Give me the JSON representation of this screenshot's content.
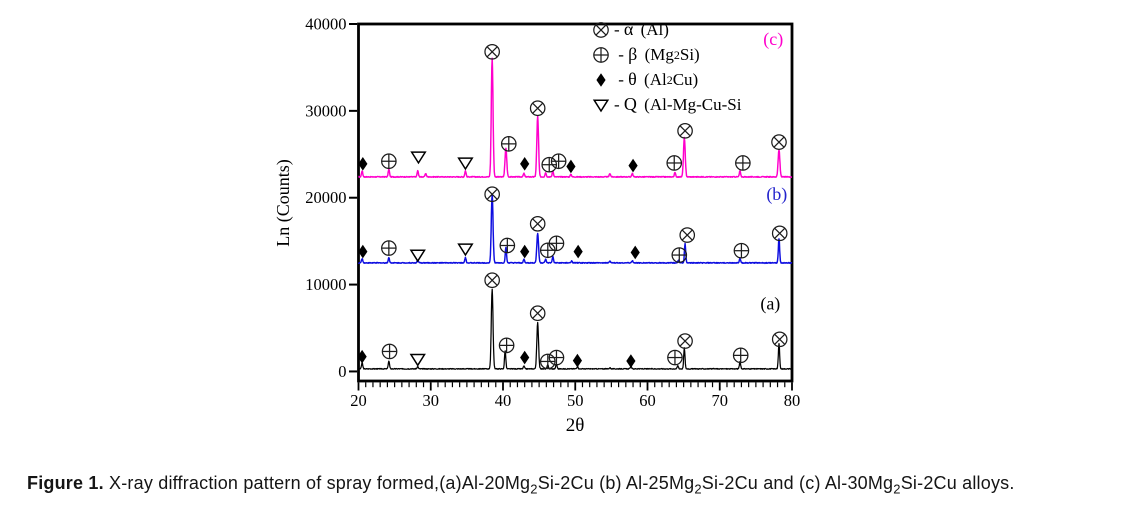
{
  "page": {
    "background": "#ffffff"
  },
  "caption": {
    "segments": [
      {
        "text": "Figure 1.",
        "bold": true
      },
      {
        "text": " X-ray diffraction pattern of spray formed,(a)Al-20Mg"
      },
      {
        "text": "2",
        "sub": true
      },
      {
        "text": "Si-2Cu (b) Al-25Mg"
      },
      {
        "text": "2",
        "sub": true
      },
      {
        "text": "Si-2Cu and (c) Al-30Mg"
      },
      {
        "text": "2",
        "sub": true
      },
      {
        "text": "Si-2Cu alloys."
      }
    ]
  },
  "chart_data": {
    "type": "line",
    "title": "",
    "xlabel": "2θ",
    "ylabel": "Ln (Counts)",
    "xlim": [
      20,
      80
    ],
    "ylim": [
      -1100,
      40000
    ],
    "x_major_ticks": [
      20,
      30,
      40,
      50,
      60,
      70,
      80
    ],
    "x_minor_step": 1,
    "y_major_ticks": [
      0,
      10000,
      20000,
      30000,
      40000
    ],
    "grid": false,
    "legend_position": "inside-top-center",
    "legend": {
      "rows": [
        {
          "symbol": "circle-x",
          "sep": "- ",
          "phase": "α",
          "formula": [
            {
              "t": " (Al)"
            }
          ]
        },
        {
          "symbol": "circle-plus",
          "sep": " - ",
          "phase": "β",
          "formula": [
            {
              "t": " (Mg"
            },
            {
              "t": "2",
              "sub": true
            },
            {
              "t": "Si)"
            }
          ]
        },
        {
          "symbol": "diamond",
          "sep": " - ",
          "phase": "θ",
          "formula": [
            {
              "t": " (Al"
            },
            {
              "t": "2",
              "sub": true
            },
            {
              "t": "Cu)"
            }
          ]
        },
        {
          "symbol": "triangle-down",
          "sep": "- ",
          "phase": "Q",
          "formula": [
            {
              "t": " (Al-Mg-Cu-Si"
            }
          ]
        }
      ]
    },
    "series": [
      {
        "id": "a",
        "label": "(a)",
        "alloy": "Al-20Mg2Si-2Cu",
        "color": "#000000",
        "label_color": "#000000",
        "label_x": 77.0,
        "label_y": 7800,
        "baseline": 300,
        "peaks": [
          [
            20.5,
            700
          ],
          [
            24.2,
            900
          ],
          [
            28.2,
            250
          ],
          [
            38.5,
            9200
          ],
          [
            40.3,
            2100
          ],
          [
            42.9,
            300
          ],
          [
            44.8,
            5300
          ],
          [
            46.2,
            450
          ],
          [
            47.4,
            550
          ],
          [
            50.3,
            250
          ],
          [
            54.8,
            120
          ],
          [
            57.7,
            280
          ],
          [
            64.2,
            350
          ],
          [
            65.1,
            2400
          ],
          [
            72.8,
            800
          ],
          [
            78.2,
            2900
          ]
        ],
        "markers": [
          [
            "diamond",
            20.5,
            1700
          ],
          [
            "circle-plus",
            24.3,
            2300
          ],
          [
            "triangle-down",
            28.2,
            1400
          ],
          [
            "circle-x",
            38.5,
            10500
          ],
          [
            "circle-plus",
            40.5,
            3000
          ],
          [
            "diamond",
            43.0,
            1600
          ],
          [
            "circle-x",
            44.8,
            6700
          ],
          [
            "circle-plus",
            46.2,
            1150
          ],
          [
            "circle-plus",
            47.4,
            1600
          ],
          [
            "diamond",
            50.3,
            1250
          ],
          [
            "diamond",
            57.7,
            1200
          ],
          [
            "circle-plus",
            63.8,
            1600
          ],
          [
            "circle-x",
            65.2,
            3500
          ],
          [
            "circle-plus",
            72.9,
            1850
          ],
          [
            "circle-x",
            78.3,
            3700
          ]
        ]
      },
      {
        "id": "b",
        "label": "(b)",
        "alloy": "Al-25Mg2Si-2Cu",
        "color": "#0d0de0",
        "label_color": "#2323cc",
        "label_x": 77.9,
        "label_y": 20400,
        "baseline": 12500,
        "peaks": [
          [
            20.5,
            500
          ],
          [
            24.2,
            600
          ],
          [
            28.2,
            300
          ],
          [
            34.8,
            600
          ],
          [
            38.5,
            7900
          ],
          [
            40.4,
            1800
          ],
          [
            42.9,
            400
          ],
          [
            44.8,
            3400
          ],
          [
            45.9,
            400
          ],
          [
            46.9,
            700
          ],
          [
            49.5,
            200
          ],
          [
            54.8,
            200
          ],
          [
            57.9,
            250
          ],
          [
            64.3,
            300
          ],
          [
            65.2,
            2200
          ],
          [
            72.8,
            500
          ],
          [
            78.2,
            2800
          ]
        ],
        "markers": [
          [
            "diamond",
            20.6,
            13800
          ],
          [
            "circle-plus",
            24.2,
            14200
          ],
          [
            "triangle-down",
            28.2,
            13400
          ],
          [
            "triangle-down",
            34.8,
            14100
          ],
          [
            "circle-x",
            38.5,
            20400
          ],
          [
            "circle-plus",
            40.6,
            14500
          ],
          [
            "diamond",
            43.0,
            13800
          ],
          [
            "circle-x",
            44.8,
            17000
          ],
          [
            "circle-plus",
            46.2,
            13950
          ],
          [
            "circle-plus",
            47.4,
            14750
          ],
          [
            "diamond",
            50.4,
            13800
          ],
          [
            "diamond",
            58.3,
            13700
          ],
          [
            "circle-plus",
            64.4,
            13400
          ],
          [
            "circle-x",
            65.5,
            15700
          ],
          [
            "circle-plus",
            73.0,
            13900
          ],
          [
            "circle-x",
            78.3,
            15900
          ]
        ]
      },
      {
        "id": "c",
        "label": "(c)",
        "alloy": "Al-30Mg2Si-2Cu",
        "color": "#ff00cc",
        "label_color": "#ff00cc",
        "label_x": 77.4,
        "label_y": 38300,
        "baseline": 22400,
        "peaks": [
          [
            20.5,
            700
          ],
          [
            24.2,
            900
          ],
          [
            28.2,
            700
          ],
          [
            29.3,
            400
          ],
          [
            34.8,
            700
          ],
          [
            38.5,
            13700
          ],
          [
            40.4,
            3300
          ],
          [
            42.9,
            400
          ],
          [
            44.8,
            7000
          ],
          [
            45.9,
            500
          ],
          [
            46.9,
            700
          ],
          [
            49.4,
            300
          ],
          [
            54.8,
            400
          ],
          [
            57.9,
            400
          ],
          [
            63.8,
            500
          ],
          [
            65.1,
            4500
          ],
          [
            72.8,
            700
          ],
          [
            78.2,
            3100
          ]
        ],
        "markers": [
          [
            "diamond",
            20.6,
            23900
          ],
          [
            "circle-plus",
            24.2,
            24200
          ],
          [
            "triangle-down",
            28.3,
            24700
          ],
          [
            "triangle-down",
            34.8,
            24000
          ],
          [
            "circle-x",
            38.5,
            36800
          ],
          [
            "circle-plus",
            40.8,
            26200
          ],
          [
            "diamond",
            43.0,
            23900
          ],
          [
            "circle-x",
            44.8,
            30300
          ],
          [
            "circle-plus",
            46.4,
            23800
          ],
          [
            "circle-plus",
            47.7,
            24200
          ],
          [
            "diamond",
            49.4,
            23600
          ],
          [
            "diamond",
            58.0,
            23700
          ],
          [
            "circle-plus",
            63.7,
            24000
          ],
          [
            "circle-x",
            65.2,
            27700
          ],
          [
            "circle-plus",
            73.2,
            24000
          ],
          [
            "circle-x",
            78.2,
            26400
          ]
        ]
      }
    ]
  }
}
